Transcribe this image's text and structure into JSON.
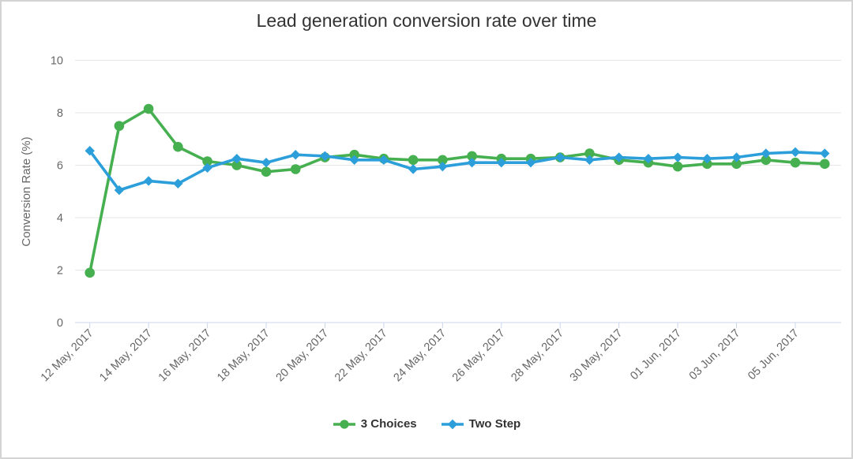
{
  "chart": {
    "title": "Lead generation conversion rate over time",
    "y_axis": {
      "label": "Conversion Rate (%)",
      "tick_labels": [
        "0",
        "2",
        "4",
        "6",
        "8",
        "10"
      ],
      "tick_values": [
        0,
        2,
        4,
        6,
        8,
        10
      ]
    },
    "x_axis": {
      "tick_labels": [
        "12 May, 2017",
        "14 May, 2017",
        "16 May, 2017",
        "18 May, 2017",
        "20 May, 2017",
        "22 May, 2017",
        "24 May, 2017",
        "26 May, 2017",
        "28 May, 2017",
        "30 May, 2017",
        "01 Jun, 2017",
        "03 Jun, 2017",
        "05 Jun, 2017"
      ]
    },
    "legend": {
      "items": [
        {
          "label": "3 Choices",
          "marker": "circle",
          "color": "#46b050"
        },
        {
          "label": "Two Step",
          "marker": "diamond",
          "color": "#2c9fdb"
        }
      ]
    },
    "colors": {
      "grid": "#e6e6e6",
      "axis": "#ccd6eb",
      "axis_label": "#666666",
      "title": "#333333"
    }
  },
  "chart_data": {
    "type": "line",
    "title": "Lead generation conversion rate over time",
    "xlabel": "",
    "ylabel": "Conversion Rate (%)",
    "ylim": [
      0,
      10
    ],
    "grid": true,
    "legend_position": "bottom",
    "x": [
      "12 May 2017",
      "13 May 2017",
      "14 May 2017",
      "15 May 2017",
      "16 May 2017",
      "17 May 2017",
      "18 May 2017",
      "19 May 2017",
      "20 May 2017",
      "21 May 2017",
      "22 May 2017",
      "23 May 2017",
      "24 May 2017",
      "25 May 2017",
      "26 May 2017",
      "27 May 2017",
      "28 May 2017",
      "29 May 2017",
      "30 May 2017",
      "31 May 2017",
      "01 Jun 2017",
      "02 Jun 2017",
      "03 Jun 2017",
      "04 Jun 2017",
      "05 Jun 2017",
      "06 Jun 2017"
    ],
    "x_tick_labels": [
      "12 May, 2017",
      "14 May, 2017",
      "16 May, 2017",
      "18 May, 2017",
      "20 May, 2017",
      "22 May, 2017",
      "24 May, 2017",
      "26 May, 2017",
      "28 May, 2017",
      "30 May, 2017",
      "01 Jun, 2017",
      "03 Jun, 2017",
      "05 Jun, 2017"
    ],
    "series": [
      {
        "name": "3 Choices",
        "color": "#46b050",
        "marker": "circle",
        "values": [
          1.9,
          7.5,
          8.15,
          6.7,
          6.15,
          6.0,
          5.75,
          5.85,
          6.3,
          6.4,
          6.25,
          6.2,
          6.2,
          6.35,
          6.25,
          6.25,
          6.3,
          6.45,
          6.2,
          6.1,
          5.95,
          6.05,
          6.05,
          6.2,
          6.1,
          6.05
        ]
      },
      {
        "name": "Two Step",
        "color": "#2c9fdb",
        "marker": "diamond",
        "values": [
          6.55,
          5.05,
          5.4,
          5.3,
          5.9,
          6.25,
          6.1,
          6.4,
          6.35,
          6.2,
          6.2,
          5.85,
          5.95,
          6.1,
          6.1,
          6.1,
          6.3,
          6.2,
          6.3,
          6.25,
          6.3,
          6.25,
          6.3,
          6.45,
          6.5,
          6.45
        ]
      }
    ]
  }
}
